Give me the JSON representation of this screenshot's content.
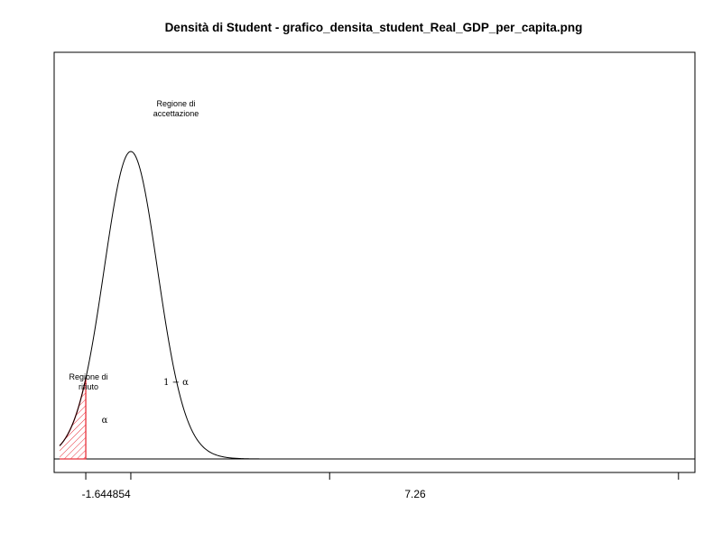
{
  "chart_data": {
    "type": "line",
    "title": "Densità di Student - grafico_densita_student_Real_GDP_per_capita.png",
    "xlabel": "",
    "ylabel": "",
    "critical_value": -1.644854,
    "tick_labels": [
      "-1.644854",
      "7.26"
    ],
    "tick_values": [
      -1.644854,
      0,
      7.26,
      20
    ],
    "xlim": [
      -2.8,
      20.6
    ],
    "ylim": [
      0,
      0.4
    ],
    "grid": false,
    "distribution": "t",
    "df": 30,
    "x_range": [
      -2.6,
      20.0
    ],
    "rejection_color": "#e8303a",
    "line_color": "#000000",
    "annotations": {
      "acceptance": [
        "Regione di",
        "accettazione"
      ],
      "rejection": [
        "Regione di",
        "rifiuto"
      ],
      "one_minus_alpha": "1 − α",
      "alpha": "α"
    }
  }
}
